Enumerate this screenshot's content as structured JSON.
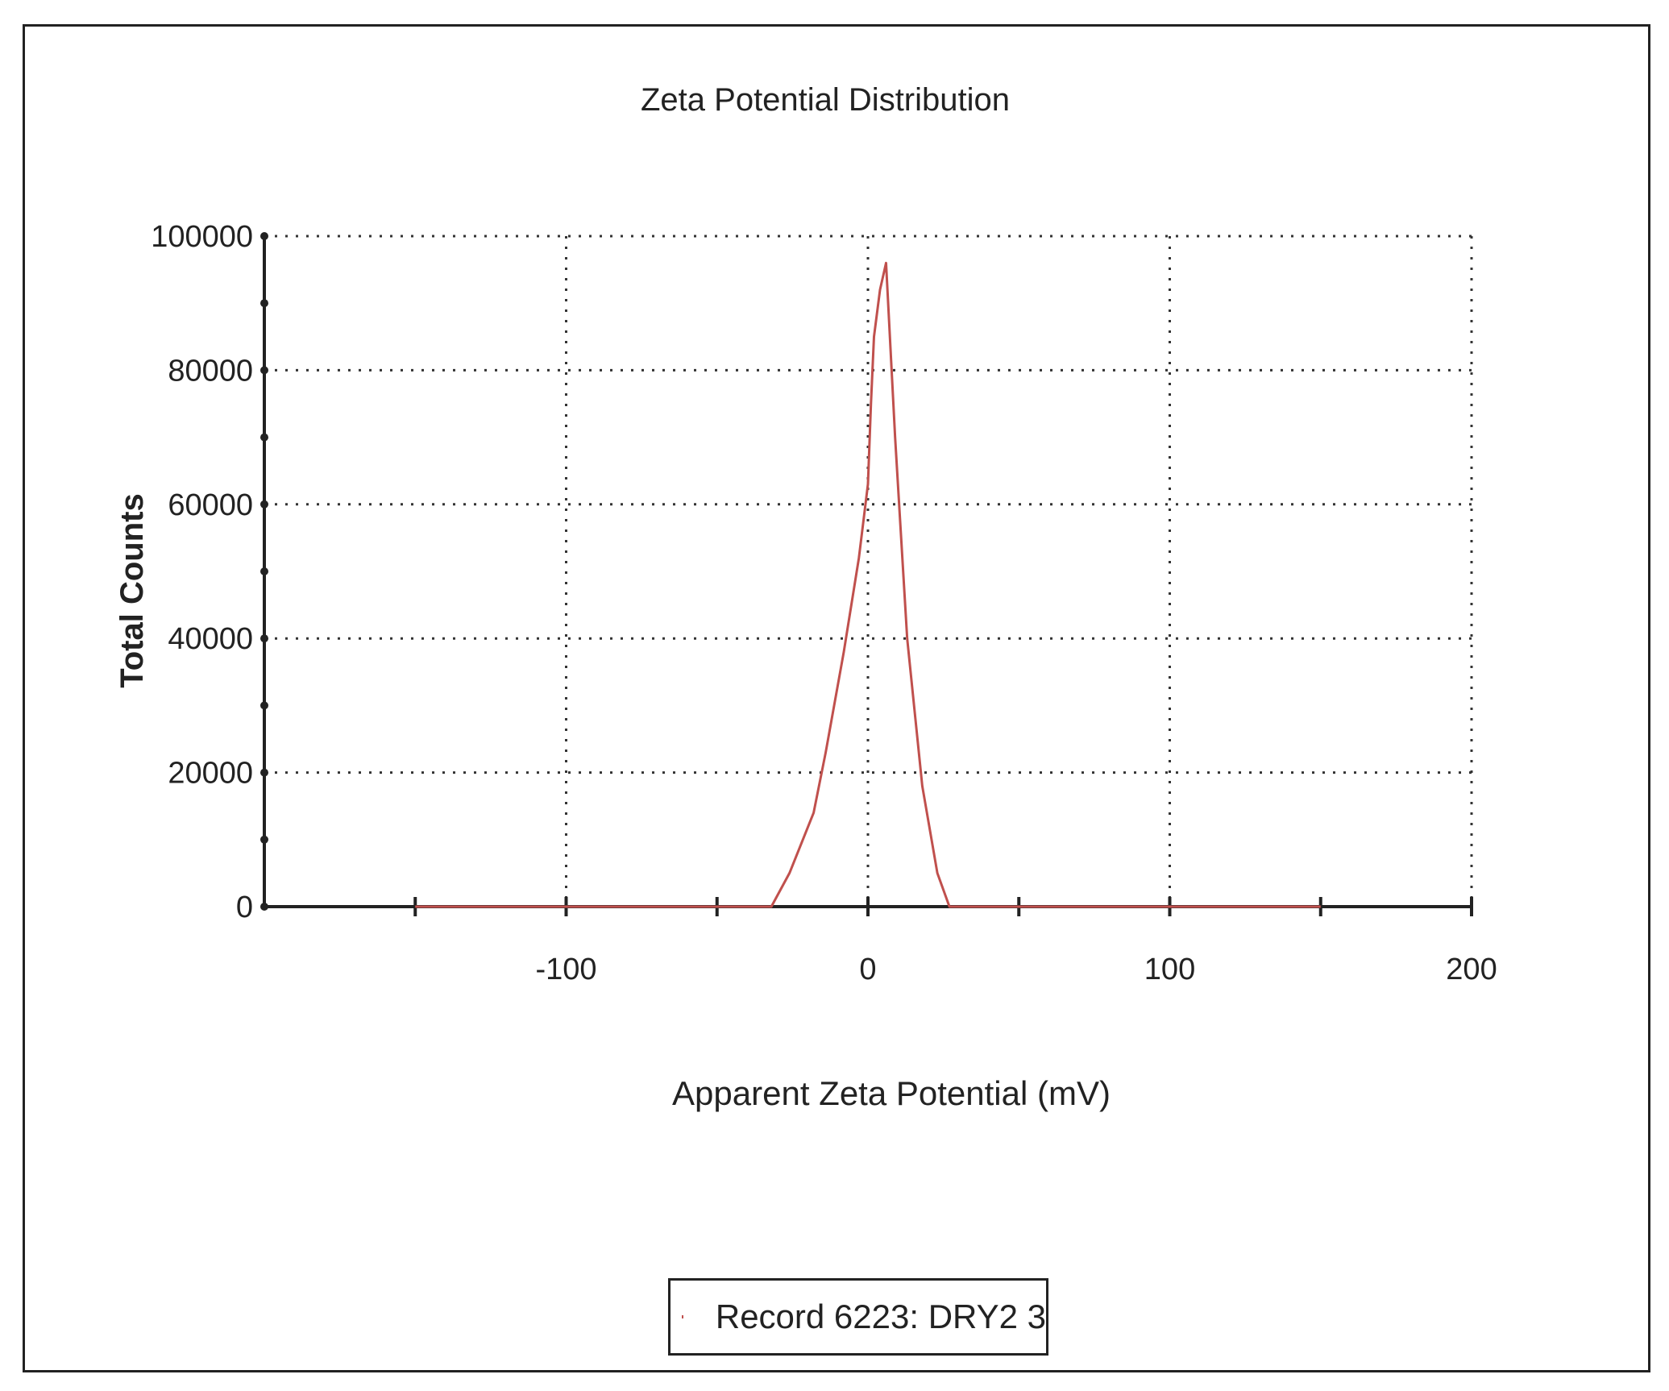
{
  "chart_data": {
    "type": "line",
    "title": "Zeta Potential Distribution",
    "xlabel": "Apparent Zeta Potential (mV)",
    "ylabel": "Total Counts",
    "xlim": [
      -200,
      200
    ],
    "ylim": [
      0,
      100000
    ],
    "x_ticks": [
      -100,
      0,
      100,
      200
    ],
    "y_ticks": [
      0,
      20000,
      40000,
      60000,
      80000,
      100000
    ],
    "grid": true,
    "legend_position": "bottom-center",
    "series": [
      {
        "name": "Record 6223: DRY2 3",
        "color": "#c0504d",
        "points": [
          [
            -150,
            0
          ],
          [
            -32,
            0
          ],
          [
            -26,
            5000
          ],
          [
            -18,
            14000
          ],
          [
            -14,
            23000
          ],
          [
            -8,
            38000
          ],
          [
            -3,
            52000
          ],
          [
            0,
            63000
          ],
          [
            1,
            75000
          ],
          [
            2,
            85000
          ],
          [
            4,
            92000
          ],
          [
            6,
            96000
          ],
          [
            9,
            70000
          ],
          [
            13,
            40000
          ],
          [
            18,
            18000
          ],
          [
            23,
            5000
          ],
          [
            27,
            0
          ],
          [
            150,
            0
          ]
        ]
      }
    ]
  }
}
